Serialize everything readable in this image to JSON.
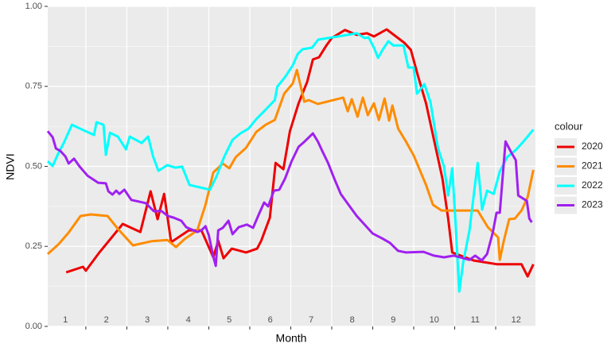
{
  "chart_data": {
    "type": "line",
    "x_label": "Month",
    "y_label": "NDVI",
    "legend_title": "colour",
    "legend": "right",
    "grid": true,
    "xlim": [
      0.57,
      12.47
    ],
    "xticks": [
      1,
      2,
      3,
      4,
      5,
      6,
      7,
      8,
      9,
      10,
      11,
      12
    ],
    "ylim": [
      0,
      1
    ],
    "yticks": [
      {
        "value": 0,
        "label": "0.00"
      },
      {
        "value": 0.25,
        "label": "0.25"
      },
      {
        "value": 0.5,
        "label": "0.50"
      },
      {
        "value": 0.75,
        "label": "0.75"
      },
      {
        "value": 1,
        "label": "1.00"
      }
    ],
    "series": [
      {
        "name": "2020",
        "color": "#ee0000",
        "x": [
          1.02,
          1.43,
          1.5,
          1.83,
          2.4,
          2.83,
          3.08,
          3.25,
          3.41,
          3.58,
          4.01,
          4.32,
          4.61,
          4.73,
          4.86,
          5.06,
          5.41,
          5.68,
          5.78,
          5.99,
          6.13,
          6.32,
          6.48,
          6.69,
          6.9,
          7.04,
          7.19,
          7.37,
          7.5,
          7.82,
          8.11,
          8.36,
          8.53,
          8.84,
          9.27,
          9.43,
          9.6,
          9.8,
          9.99,
          10.2,
          10.34,
          10.44,
          10.96,
          11.54,
          11.83,
          12.13,
          12.28,
          12.42
        ],
        "values": [
          0.169,
          0.186,
          0.174,
          0.231,
          0.32,
          0.295,
          0.422,
          0.335,
          0.414,
          0.263,
          0.3,
          0.3,
          0.216,
          0.268,
          0.213,
          0.243,
          0.231,
          0.243,
          0.268,
          0.34,
          0.511,
          0.491,
          0.61,
          0.697,
          0.764,
          0.834,
          0.841,
          0.878,
          0.901,
          0.926,
          0.911,
          0.916,
          0.906,
          0.928,
          0.886,
          0.864,
          0.784,
          0.697,
          0.586,
          0.462,
          0.337,
          0.231,
          0.206,
          0.194,
          0.194,
          0.194,
          0.156,
          0.194
        ]
      },
      {
        "name": "2021",
        "color": "#ff8c00",
        "x": [
          0.57,
          0.83,
          1.08,
          1.37,
          1.62,
          2.03,
          2.28,
          2.65,
          3.1,
          3.49,
          3.7,
          3.91,
          4.22,
          4.42,
          4.61,
          4.84,
          5.0,
          5.16,
          5.41,
          5.66,
          5.89,
          6.11,
          6.34,
          6.55,
          6.65,
          6.83,
          6.94,
          7.16,
          7.78,
          7.89,
          7.99,
          8.13,
          8.26,
          8.38,
          8.53,
          8.65,
          8.79,
          8.9,
          8.98,
          9.12,
          9.31,
          9.5,
          9.64,
          9.8,
          9.97,
          10.18,
          10.71,
          11.06,
          11.31,
          11.56,
          11.6,
          11.7,
          11.83,
          11.97,
          12.13,
          12.28,
          12.42
        ],
        "values": [
          0.226,
          0.256,
          0.293,
          0.345,
          0.35,
          0.345,
          0.305,
          0.253,
          0.266,
          0.27,
          0.248,
          0.273,
          0.3,
          0.38,
          0.481,
          0.509,
          0.494,
          0.529,
          0.558,
          0.608,
          0.63,
          0.645,
          0.727,
          0.759,
          0.801,
          0.702,
          0.707,
          0.695,
          0.715,
          0.672,
          0.71,
          0.655,
          0.715,
          0.66,
          0.697,
          0.645,
          0.712,
          0.643,
          0.69,
          0.618,
          0.578,
          0.534,
          0.491,
          0.442,
          0.38,
          0.362,
          0.362,
          0.362,
          0.31,
          0.278,
          0.208,
          0.268,
          0.335,
          0.337,
          0.362,
          0.404,
          0.489
        ]
      },
      {
        "name": "2022",
        "color": "#00ffff",
        "x": [
          0.57,
          0.69,
          0.81,
          0.96,
          1.16,
          1.41,
          1.7,
          1.76,
          1.93,
          1.99,
          2.09,
          2.28,
          2.48,
          2.57,
          2.86,
          3.02,
          3.14,
          3.27,
          3.49,
          3.68,
          3.85,
          4.03,
          4.53,
          4.69,
          4.88,
          5.08,
          5.27,
          5.47,
          5.66,
          5.87,
          6.11,
          6.17,
          6.36,
          6.55,
          6.67,
          6.79,
          7.02,
          7.17,
          7.66,
          8.11,
          8.3,
          8.4,
          8.53,
          8.63,
          8.75,
          8.88,
          9.0,
          9.25,
          9.37,
          9.5,
          9.58,
          9.76,
          9.91,
          10.09,
          10.24,
          10.34,
          10.44,
          10.51,
          10.61,
          10.71,
          10.86,
          11.06,
          11.17,
          11.29,
          11.45,
          11.6,
          11.78,
          11.99,
          12.18,
          12.42
        ],
        "values": [
          0.516,
          0.501,
          0.536,
          0.573,
          0.63,
          0.615,
          0.598,
          0.638,
          0.63,
          0.536,
          0.605,
          0.593,
          0.553,
          0.593,
          0.573,
          0.593,
          0.531,
          0.486,
          0.504,
          0.496,
          0.499,
          0.442,
          0.427,
          0.469,
          0.531,
          0.583,
          0.603,
          0.618,
          0.648,
          0.675,
          0.707,
          0.749,
          0.779,
          0.816,
          0.851,
          0.866,
          0.871,
          0.896,
          0.906,
          0.916,
          0.901,
          0.903,
          0.871,
          0.839,
          0.866,
          0.891,
          0.878,
          0.878,
          0.809,
          0.809,
          0.727,
          0.757,
          0.7,
          0.558,
          0.499,
          0.409,
          0.494,
          0.35,
          0.109,
          0.201,
          0.3,
          0.511,
          0.365,
          0.424,
          0.414,
          0.484,
          0.529,
          0.551,
          0.578,
          0.615
        ]
      },
      {
        "name": "2023",
        "color": "#a020f0",
        "x": [
          0.57,
          0.69,
          0.77,
          0.88,
          1.0,
          1.08,
          1.21,
          1.35,
          1.54,
          1.8,
          1.99,
          2.05,
          2.15,
          2.24,
          2.32,
          2.44,
          2.51,
          2.61,
          2.79,
          2.96,
          3.16,
          3.35,
          3.5,
          3.64,
          3.83,
          3.95,
          4.22,
          4.32,
          4.42,
          4.5,
          4.61,
          4.67,
          4.73,
          4.84,
          4.98,
          5.08,
          5.23,
          5.43,
          5.58,
          5.72,
          5.85,
          5.95,
          6.09,
          6.22,
          6.36,
          6.52,
          6.69,
          6.84,
          7.04,
          7.16,
          7.27,
          7.41,
          7.56,
          7.72,
          7.91,
          8.11,
          8.3,
          8.5,
          8.73,
          8.92,
          9.12,
          9.31,
          9.74,
          9.99,
          10.24,
          10.48,
          10.86,
          11.0,
          11.16,
          11.29,
          11.43,
          11.52,
          11.6,
          11.74,
          11.87,
          11.99,
          12.05,
          12.26,
          12.32,
          12.38
        ],
        "values": [
          0.61,
          0.591,
          0.556,
          0.548,
          0.531,
          0.509,
          0.524,
          0.499,
          0.471,
          0.449,
          0.447,
          0.422,
          0.412,
          0.424,
          0.414,
          0.427,
          0.414,
          0.395,
          0.39,
          0.385,
          0.36,
          0.36,
          0.345,
          0.34,
          0.33,
          0.31,
          0.295,
          0.3,
          0.313,
          0.285,
          0.218,
          0.189,
          0.3,
          0.308,
          0.33,
          0.288,
          0.31,
          0.318,
          0.308,
          0.35,
          0.387,
          0.375,
          0.424,
          0.427,
          0.462,
          0.516,
          0.561,
          0.578,
          0.603,
          0.578,
          0.548,
          0.511,
          0.462,
          0.414,
          0.38,
          0.345,
          0.318,
          0.29,
          0.275,
          0.261,
          0.236,
          0.231,
          0.233,
          0.221,
          0.216,
          0.221,
          0.208,
          0.221,
          0.206,
          0.226,
          0.293,
          0.355,
          0.355,
          0.578,
          0.546,
          0.519,
          0.409,
          0.392,
          0.337,
          0.325
        ]
      }
    ]
  }
}
